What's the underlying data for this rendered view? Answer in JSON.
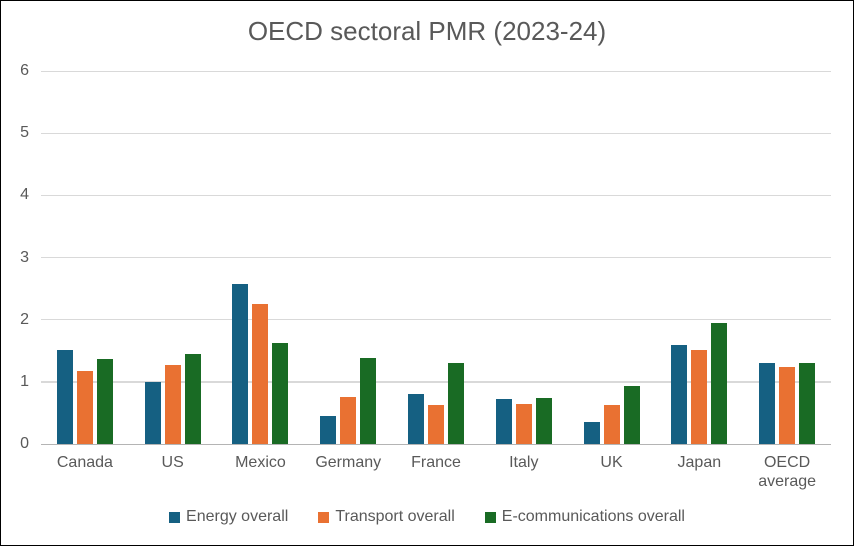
{
  "chart_data": {
    "type": "bar",
    "title": "OECD sectoral PMR (2023-24)",
    "categories": [
      "Canada",
      "US",
      "Mexico",
      "Germany",
      "France",
      "Italy",
      "UK",
      "Japan",
      "OECD average"
    ],
    "series": [
      {
        "name": "Energy overall",
        "color": "#156082",
        "values": [
          1.52,
          0.99,
          2.58,
          0.45,
          0.8,
          0.72,
          0.35,
          1.59,
          1.31
        ]
      },
      {
        "name": "Transport overall",
        "color": "#E97132",
        "values": [
          1.18,
          1.27,
          2.26,
          0.76,
          0.62,
          0.64,
          0.63,
          1.52,
          1.24
        ]
      },
      {
        "name": "E-communications overall",
        "color": "#196B24",
        "values": [
          1.36,
          1.45,
          1.63,
          1.39,
          1.3,
          0.74,
          0.94,
          1.95,
          1.31
        ]
      }
    ],
    "y_axis": {
      "min": 0,
      "max": 6,
      "tick_interval": 1,
      "tick_labels": [
        "0",
        "1",
        "2",
        "3",
        "4",
        "5",
        "6"
      ]
    },
    "xlabel": "",
    "ylabel": "",
    "grid": true,
    "legend_position": "bottom",
    "palette": {
      "gridline_color": "#D9D9D9",
      "axis_line_color": "#B4B4B4",
      "text_color": "#595959",
      "background": "#FFFFFF",
      "border": "#000000"
    }
  }
}
